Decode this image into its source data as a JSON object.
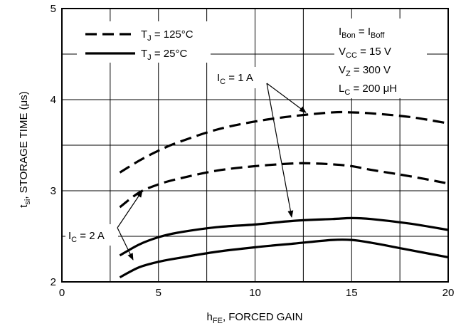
{
  "chart_data": {
    "type": "line",
    "xlabel": {
      "main": "h",
      "sub": "FE",
      "rest": ", FORCED GAIN"
    },
    "ylabel": {
      "main": "t",
      "sub": "si",
      "rest": ", STORAGE TIME (μs)"
    },
    "xlim": [
      0,
      20
    ],
    "ylim": [
      2,
      5
    ],
    "x_ticks": [
      0,
      5,
      10,
      15,
      20
    ],
    "y_ticks": [
      2,
      3,
      4,
      5
    ],
    "x_grid": [
      0,
      2.5,
      5,
      7.5,
      10,
      12.5,
      15,
      17.5,
      20
    ],
    "y_grid": [
      2,
      2.5,
      3,
      3.5,
      4,
      4.5,
      5
    ],
    "grid": true,
    "legend": [
      {
        "style": "dashed",
        "label": "T",
        "sub": "J",
        "rest": " = 125°C"
      },
      {
        "style": "solid",
        "label": "T",
        "sub": "J",
        "rest": " = 25°C"
      }
    ],
    "conditions": [
      {
        "main": "I",
        "sub": "Bon",
        "mid": " = I",
        "sub2": "Boff",
        "rest": ""
      },
      {
        "main": "V",
        "sub": "CC",
        "mid": " = 15 V",
        "sub2": "",
        "rest": ""
      },
      {
        "main": "V",
        "sub": "Z",
        "mid": " = 300 V",
        "sub2": "",
        "rest": ""
      },
      {
        "main": "L",
        "sub": "C",
        "mid": " = 200 μH",
        "sub2": "",
        "rest": ""
      }
    ],
    "annotations": [
      {
        "main": "I",
        "sub": "C",
        "rest": " = 1 A"
      },
      {
        "main": "I",
        "sub": "C",
        "rest": " = 2 A"
      }
    ],
    "series": [
      {
        "style": "dashed",
        "x": [
          3,
          4,
          5,
          6,
          8,
          10,
          12,
          14,
          15,
          16,
          18,
          20
        ],
        "y": [
          3.2,
          3.33,
          3.44,
          3.53,
          3.67,
          3.76,
          3.82,
          3.86,
          3.86,
          3.85,
          3.81,
          3.74
        ]
      },
      {
        "style": "dashed",
        "x": [
          3,
          4,
          5,
          6,
          8,
          10,
          12,
          13,
          14,
          15,
          16,
          18,
          20
        ],
        "y": [
          2.82,
          2.98,
          3.07,
          3.13,
          3.22,
          3.27,
          3.3,
          3.3,
          3.29,
          3.27,
          3.23,
          3.16,
          3.08
        ]
      },
      {
        "style": "solid",
        "x": [
          3,
          4,
          5,
          6,
          8,
          10,
          12,
          14,
          15,
          16,
          18,
          20
        ],
        "y": [
          2.29,
          2.41,
          2.49,
          2.54,
          2.6,
          2.63,
          2.67,
          2.69,
          2.7,
          2.69,
          2.64,
          2.57
        ]
      },
      {
        "style": "solid",
        "x": [
          3,
          4,
          5,
          6,
          8,
          10,
          12,
          14,
          15,
          16,
          18,
          20
        ],
        "y": [
          2.05,
          2.16,
          2.22,
          2.26,
          2.33,
          2.38,
          2.42,
          2.46,
          2.46,
          2.43,
          2.35,
          2.27
        ]
      }
    ]
  }
}
